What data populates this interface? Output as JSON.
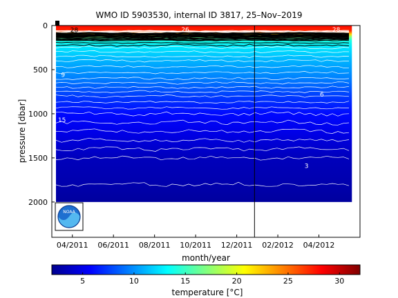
{
  "chart_data": {
    "type": "heatmap",
    "title": "WMO ID 5903530, internal ID 3817, 25–Nov–2019",
    "xlabel": "month/year",
    "ylabel": "pressure [dbar]",
    "x_ticks": [
      "04/2011",
      "06/2011",
      "08/2011",
      "10/2011",
      "12/2011",
      "02/2012",
      "04/2012"
    ],
    "y_ticks": [
      "0",
      "500",
      "1000",
      "1500",
      "2000"
    ],
    "ylim": [
      2400,
      0
    ],
    "x_range": [
      "2011-03",
      "2012-06"
    ],
    "vertical_marker_date": "2012-01",
    "colorbar": {
      "label": "temperature [°C]",
      "range": [
        2,
        32
      ],
      "ticks": [
        "5",
        "10",
        "15",
        "20",
        "25",
        "30"
      ],
      "colormap": "jet"
    },
    "contour_labels": [
      "28",
      "26",
      "28",
      "12",
      "9",
      "6",
      "15",
      "3"
    ],
    "temperature_profile": [
      {
        "pressure": 0,
        "temperature": 28
      },
      {
        "pressure": 60,
        "temperature": 27
      },
      {
        "pressure": 100,
        "temperature": 22
      },
      {
        "pressure": 130,
        "temperature": 17
      },
      {
        "pressure": 170,
        "temperature": 14
      },
      {
        "pressure": 250,
        "temperature": 12.5
      },
      {
        "pressure": 400,
        "temperature": 11
      },
      {
        "pressure": 600,
        "temperature": 9.5
      },
      {
        "pressure": 800,
        "temperature": 7.5
      },
      {
        "pressure": 1000,
        "temperature": 6
      },
      {
        "pressure": 1200,
        "temperature": 5
      },
      {
        "pressure": 1500,
        "temperature": 3.5
      },
      {
        "pressure": 1800,
        "temperature": 3
      },
      {
        "pressure": 2000,
        "temperature": 2.5
      }
    ],
    "data_range_pressure": [
      0,
      2000
    ],
    "data_range_time": [
      "2011-03",
      "2012-05"
    ]
  },
  "logo": {
    "text": "NOAA",
    "icon": "noaa-logo-icon"
  }
}
